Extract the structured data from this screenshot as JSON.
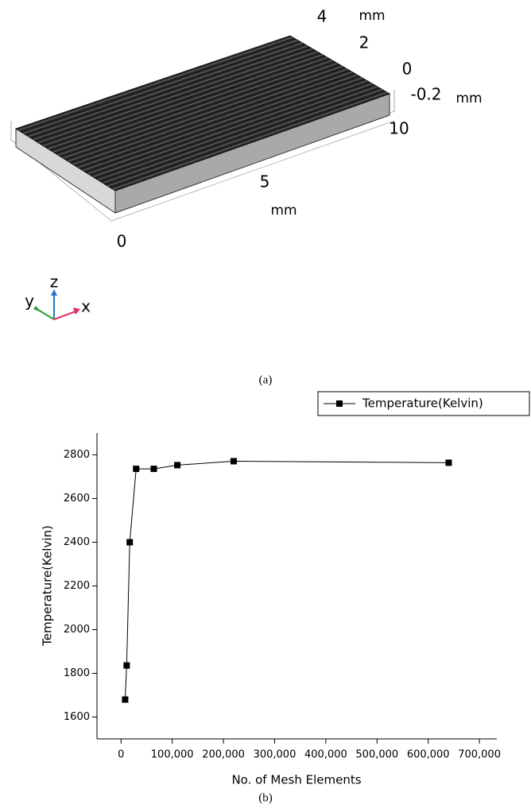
{
  "panel_a": {
    "axis_labels": [
      "4",
      "mm",
      "2",
      "0",
      "-0.2",
      "mm",
      "10",
      "5",
      "mm",
      "0"
    ],
    "triad": [
      "z",
      "y",
      "x"
    ],
    "caption": "(a)"
  },
  "chart_data": {
    "type": "line",
    "caption": "(b)",
    "x_label": "No. of Mesh Elements",
    "y_label": "Temperature(Kelvin)",
    "x": [
      8000,
      11000,
      17000,
      29500,
      64000,
      110000,
      220000,
      640000
    ],
    "series": [
      {
        "name": "Temperature(Kelvin)",
        "color": "#000000",
        "values": [
          1680,
          1836,
          2400,
          2736,
          2736,
          2753,
          2771,
          2764
        ]
      }
    ],
    "xlim": [
      -47000,
      734000
    ],
    "xticks": [
      0,
      {
        "value": 100000,
        "label": "100,000"
      },
      {
        "value": 200000,
        "label": "200,000"
      },
      {
        "value": 300000,
        "label": "300,000"
      },
      {
        "value": 400000,
        "label": "400,000"
      },
      {
        "value": 500000,
        "label": "500,000"
      },
      {
        "value": 600000,
        "label": "600,000"
      },
      {
        "value": 700000,
        "label": "700,000"
      }
    ],
    "ylim": [
      1500,
      2900
    ],
    "yticks": [
      1600,
      1800,
      2000,
      2200,
      2400,
      2600,
      2800
    ],
    "grid": false,
    "legend": "top-right"
  }
}
